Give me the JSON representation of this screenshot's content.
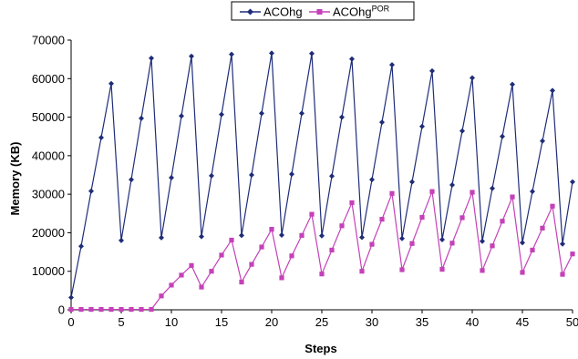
{
  "chart_data": {
    "type": "line",
    "xlabel": "Steps",
    "ylabel": "Memory (KB)",
    "xlim": [
      0,
      50
    ],
    "ylim": [
      0,
      70000
    ],
    "x_ticks": [
      0,
      5,
      10,
      15,
      20,
      25,
      30,
      35,
      40,
      45,
      50
    ],
    "y_ticks": [
      0,
      10000,
      20000,
      30000,
      40000,
      50000,
      60000,
      70000
    ],
    "grid": false,
    "legend_position": "top-center",
    "series": [
      {
        "name": "ACOhg",
        "name_superscript": "",
        "color": "#1f2d78",
        "marker": "diamond",
        "x": [
          0,
          1,
          2,
          3,
          4,
          5,
          6,
          7,
          8,
          9,
          10,
          11,
          12,
          13,
          14,
          15,
          16,
          17,
          18,
          19,
          20,
          21,
          22,
          23,
          24,
          25,
          26,
          27,
          28,
          29,
          30,
          31,
          32,
          33,
          34,
          35,
          36,
          37,
          38,
          39,
          40,
          41,
          42,
          43,
          44,
          45,
          46,
          47,
          48,
          49,
          50
        ],
        "y": [
          3200,
          16500,
          30800,
          44700,
          58700,
          18000,
          33800,
          49700,
          65300,
          18700,
          34300,
          50300,
          65800,
          19000,
          34800,
          50700,
          66300,
          19300,
          35000,
          51000,
          66600,
          19400,
          35200,
          51000,
          66500,
          19200,
          34700,
          50000,
          65100,
          18800,
          33800,
          48700,
          63600,
          18500,
          33200,
          47600,
          62000,
          18200,
          32400,
          46400,
          60200,
          17800,
          31500,
          45000,
          58500,
          17400,
          30700,
          43800,
          56900,
          17100,
          33200
        ]
      },
      {
        "name": "ACOhg",
        "name_superscript": "POR",
        "color": "#c441b8",
        "marker": "square",
        "x": [
          0,
          1,
          2,
          3,
          4,
          5,
          6,
          7,
          8,
          9,
          10,
          11,
          12,
          13,
          14,
          15,
          16,
          17,
          18,
          19,
          20,
          21,
          22,
          23,
          24,
          25,
          26,
          27,
          28,
          29,
          30,
          31,
          32,
          33,
          34,
          35,
          36,
          37,
          38,
          39,
          40,
          41,
          42,
          43,
          44,
          45,
          46,
          47,
          48,
          49,
          50
        ],
        "y": [
          100,
          100,
          100,
          100,
          100,
          100,
          100,
          100,
          100,
          3600,
          6400,
          9000,
          11500,
          5900,
          10000,
          14200,
          18100,
          7200,
          11800,
          16300,
          20900,
          8300,
          14000,
          19300,
          24800,
          9300,
          15500,
          21800,
          27800,
          10000,
          17000,
          23500,
          30200,
          10400,
          17200,
          24000,
          30700,
          10500,
          17300,
          23900,
          30500,
          10200,
          16600,
          23000,
          29300,
          9700,
          15500,
          21200,
          26900,
          9200,
          14500
        ]
      }
    ]
  }
}
